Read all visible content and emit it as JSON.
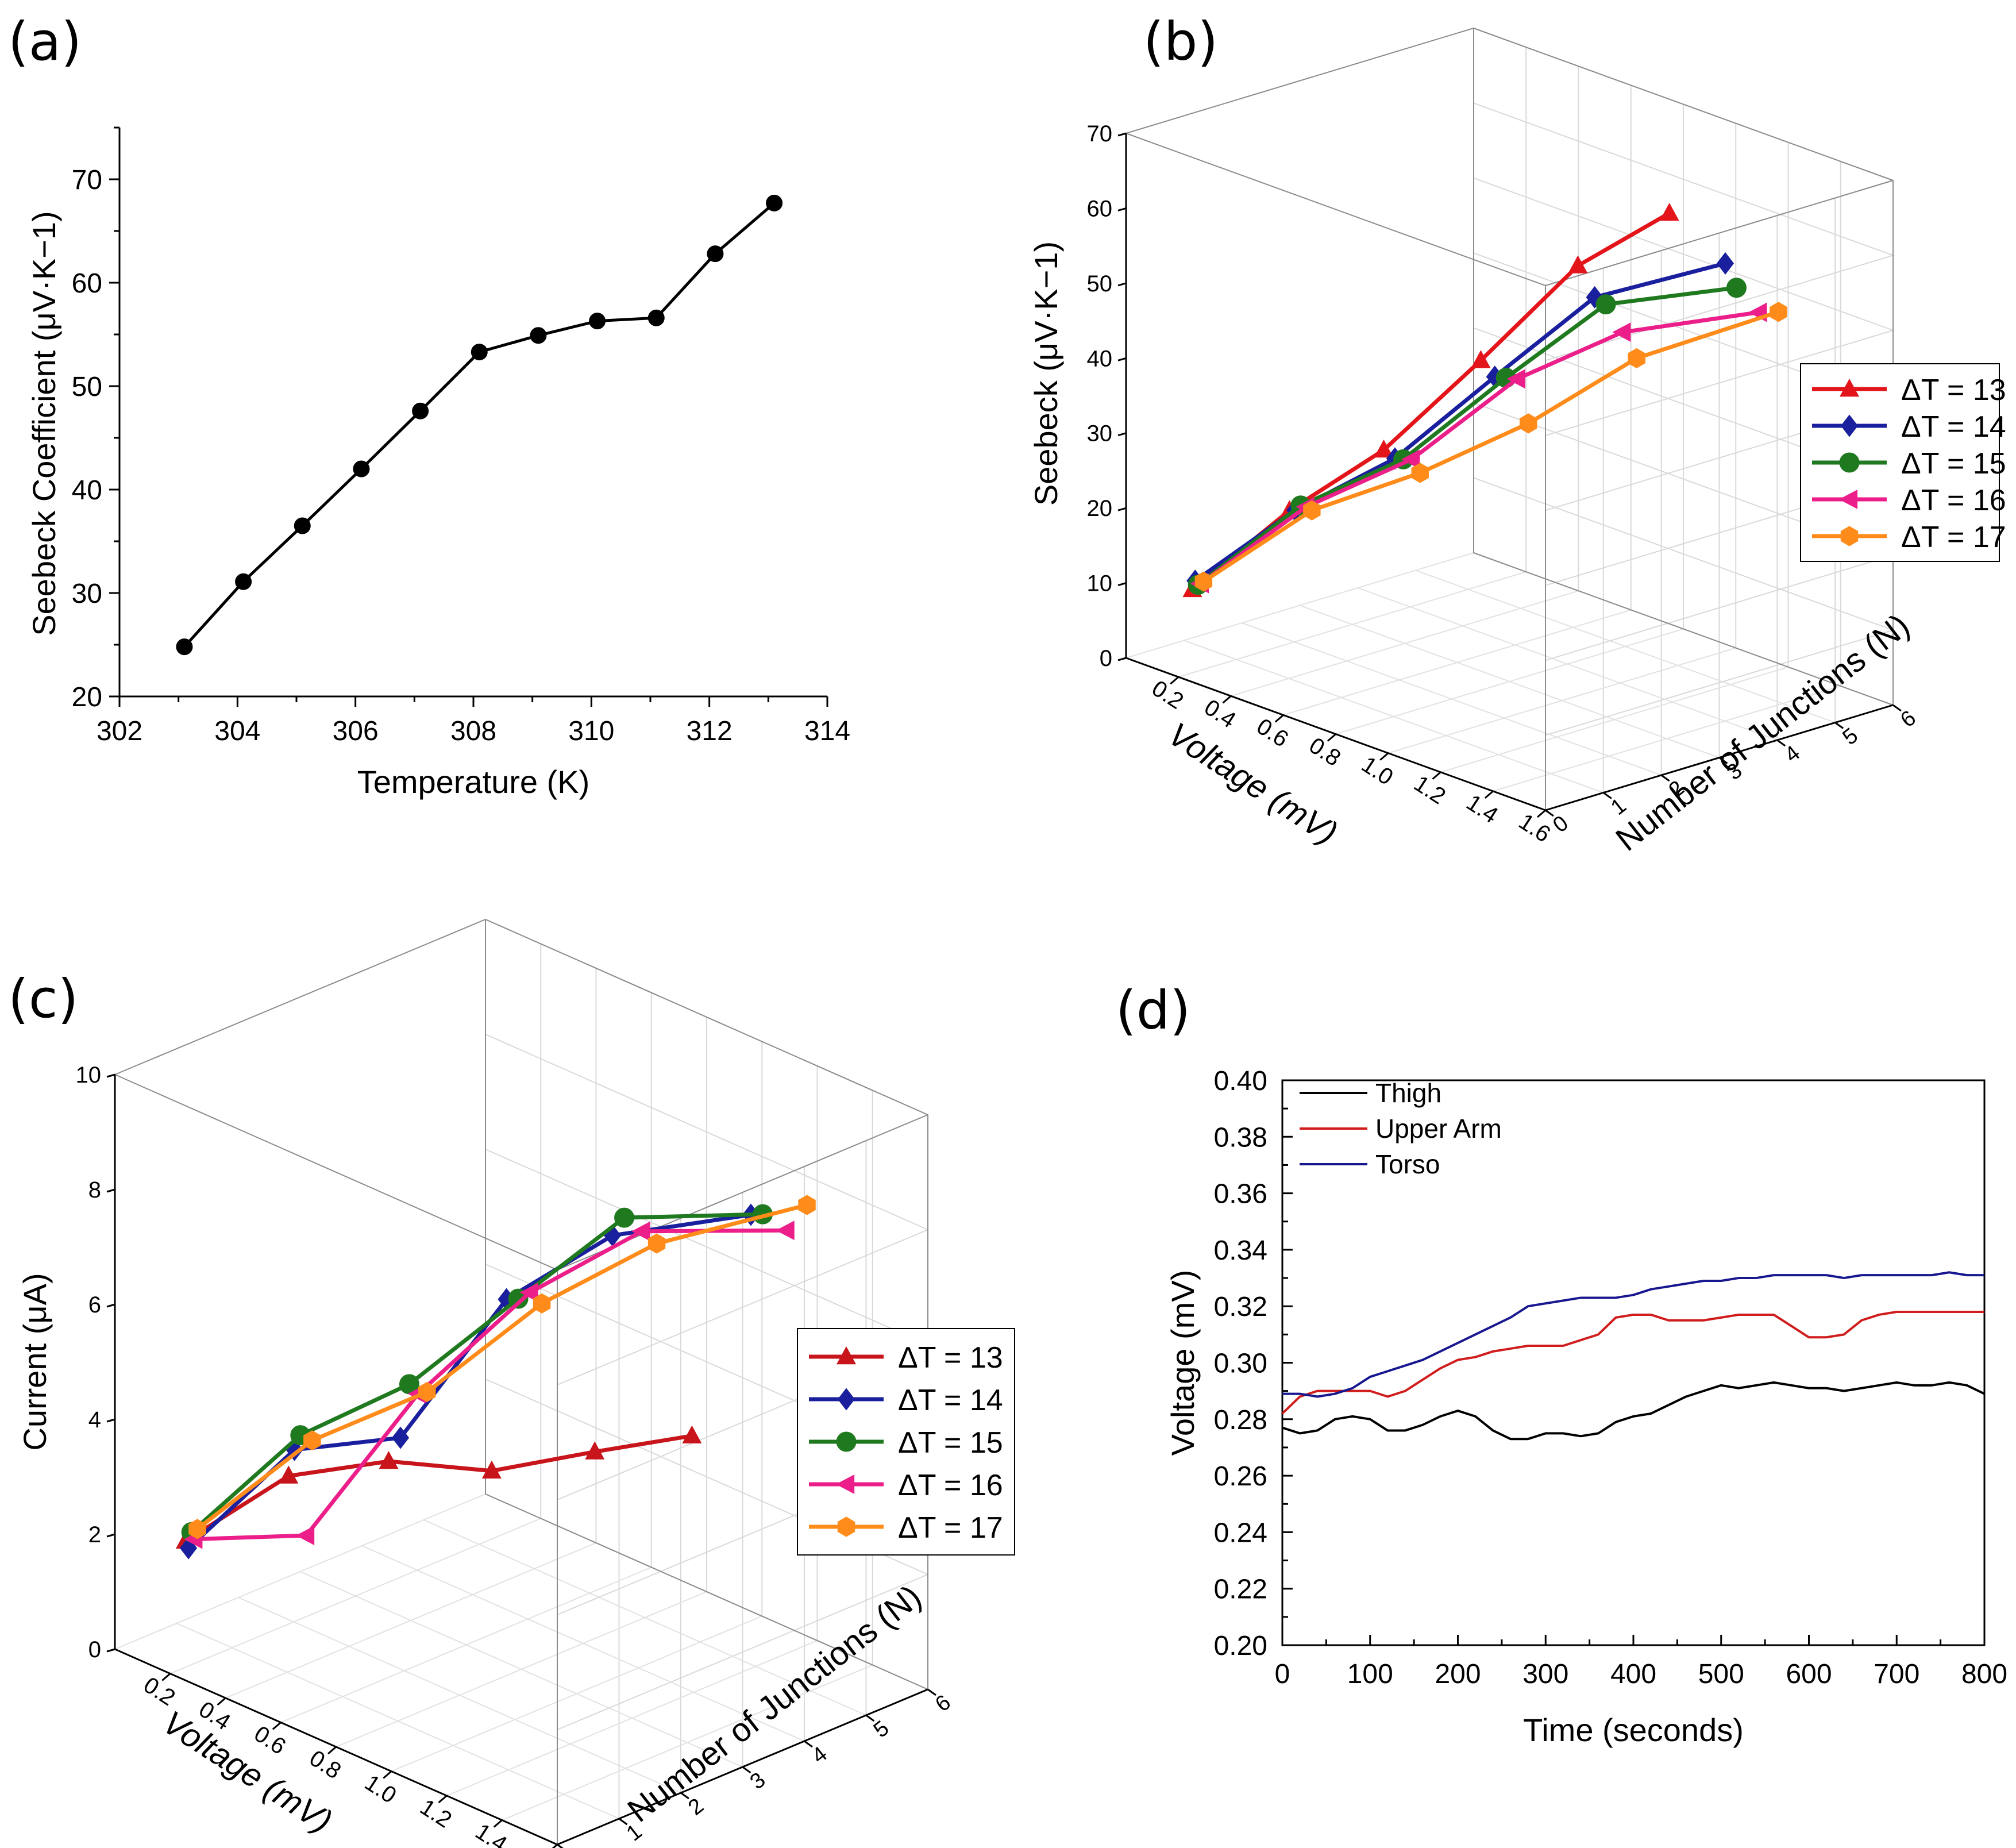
{
  "chart_data": [
    {
      "id": "a",
      "panel_label": "(a)",
      "type": "line",
      "xlabel": "Temperature (K)",
      "ylabel": "Seebeck Coefficient (μV·K−1)",
      "xlim": [
        302,
        314
      ],
      "ylim": [
        20,
        75
      ],
      "xticks": [
        302,
        304,
        306,
        308,
        310,
        312,
        314
      ],
      "yticks": [
        20,
        30,
        40,
        50,
        60,
        70
      ],
      "series": [
        {
          "name": "Seebeck",
          "color": "#000000",
          "marker": "circle",
          "x": [
            303.1,
            304.1,
            305.1,
            306.1,
            307.1,
            308.1,
            309.1,
            310.1,
            311.1,
            312.1,
            313.1
          ],
          "y": [
            24.8,
            31.1,
            36.5,
            42.0,
            47.6,
            53.3,
            54.9,
            56.3,
            56.6,
            62.8,
            67.7
          ]
        }
      ]
    },
    {
      "id": "b",
      "panel_label": "(b)",
      "type": "line3d",
      "xlabel": "Voltage (mV)",
      "ylabel": "Number of Junctions (N)",
      "zlabel": "Seebeck (μV·K−1)",
      "x_ticks": [
        "0.2",
        "0.4",
        "0.6",
        "0.8",
        "1.0",
        "1.2",
        "1.4",
        "1.6"
      ],
      "y_ticks": [
        "0",
        "1",
        "2",
        "3",
        "4",
        "5",
        "6"
      ],
      "z_ticks": [
        "0",
        "10",
        "20",
        "30",
        "40",
        "50",
        "60",
        "70"
      ],
      "zlim": [
        0,
        70
      ],
      "legend": {
        "placement": "right",
        "entries": [
          "ΔT = 13",
          "ΔT = 14",
          "ΔT = 15",
          "ΔT = 16",
          "ΔT = 17"
        ]
      },
      "series": [
        {
          "name": "ΔT = 13",
          "color": "#e3151a",
          "marker": "triangle",
          "voltage": [
            0.13,
            0.27,
            0.4,
            0.54,
            0.68,
            0.8
          ],
          "n": [
            1,
            2,
            3,
            4,
            5,
            6
          ],
          "z": [
            7.2,
            17.3,
            24.8,
            36.3,
            48.5,
            54.8
          ]
        },
        {
          "name": "ΔT = 14",
          "color": "#1a1f9e",
          "marker": "diamond",
          "voltage": [
            0.14,
            0.29,
            0.44,
            0.59,
            0.74,
            1.0
          ],
          "n": [
            1,
            2,
            3,
            4,
            5,
            6
          ],
          "z": [
            8.5,
            17.6,
            24.2,
            34.8,
            45.1,
            50.8
          ]
        },
        {
          "name": "ΔT = 15",
          "color": "#1f7a1f",
          "marker": "circle",
          "voltage": [
            0.15,
            0.31,
            0.47,
            0.63,
            0.78,
            1.04
          ],
          "n": [
            1,
            2,
            3,
            4,
            5,
            6
          ],
          "z": [
            8.1,
            18.5,
            24.5,
            35.2,
            44.7,
            48.1
          ]
        },
        {
          "name": "ΔT = 16",
          "color": "#ec1f8a",
          "marker": "triangle-left",
          "voltage": [
            0.16,
            0.33,
            0.5,
            0.67,
            0.84,
            1.12
          ],
          "n": [
            1,
            2,
            3,
            4,
            5,
            6
          ],
          "z": [
            8.4,
            18.6,
            24.9,
            35.6,
            41.8,
            45.9
          ]
        },
        {
          "name": "ΔT = 17",
          "color": "#ff8c1a",
          "marker": "hexagon",
          "voltage": [
            0.17,
            0.35,
            0.53,
            0.71,
            0.89,
            1.19
          ],
          "n": [
            1,
            2,
            3,
            4,
            5,
            6
          ],
          "z": [
            8.8,
            18.4,
            23.5,
            30.2,
            39.0,
            46.9
          ]
        }
      ]
    },
    {
      "id": "c",
      "panel_label": "(c)",
      "type": "line3d",
      "xlabel": "Voltage (mV)",
      "ylabel": "Number of Junctions (N)",
      "zlabel": "Current (μA)",
      "x_ticks": [
        "0.2",
        "0.4",
        "0.6",
        "0.8",
        "1.0",
        "1.2",
        "1.4",
        "1.6"
      ],
      "y_ticks": [
        "0",
        "1",
        "2",
        "3",
        "4",
        "5",
        "6"
      ],
      "z_ticks": [
        "0",
        "2",
        "4",
        "6",
        "8",
        "10"
      ],
      "zlim": [
        0,
        10
      ],
      "legend": {
        "placement": "right",
        "entries": [
          "ΔT = 13",
          "ΔT = 14",
          "ΔT = 15",
          "ΔT = 16",
          "ΔT = 17"
        ]
      },
      "series": [
        {
          "name": "ΔT = 13",
          "color": "#c8141b",
          "marker": "triangle",
          "voltage": [
            0.13,
            0.27,
            0.4,
            0.54,
            0.68,
            0.8
          ],
          "n": [
            1,
            2,
            3,
            4,
            5,
            6
          ],
          "z": [
            1.5,
            2.5,
            2.6,
            2.3,
            2.5,
            2.6
          ]
        },
        {
          "name": "ΔT = 14",
          "color": "#1a1f9e",
          "marker": "diamond",
          "voltage": [
            0.14,
            0.29,
            0.44,
            0.59,
            0.74,
            1.0
          ],
          "n": [
            1,
            2,
            3,
            4,
            5,
            6
          ],
          "z": [
            1.4,
            3.0,
            3.1,
            5.4,
            6.4,
            6.9
          ]
        },
        {
          "name": "ΔT = 15",
          "color": "#1f7a1f",
          "marker": "circle",
          "voltage": [
            0.15,
            0.31,
            0.47,
            0.63,
            0.78,
            1.04
          ],
          "n": [
            1,
            2,
            3,
            4,
            5,
            6
          ],
          "z": [
            1.7,
            3.3,
            4.1,
            5.5,
            6.8,
            7.0
          ]
        },
        {
          "name": "ΔT = 16",
          "color": "#ec1f8a",
          "marker": "triangle-left",
          "voltage": [
            0.16,
            0.33,
            0.5,
            0.67,
            0.84,
            1.12
          ],
          "n": [
            1,
            2,
            3,
            4,
            5,
            6
          ],
          "z": [
            1.6,
            1.6,
            4.0,
            5.7,
            6.7,
            6.9
          ]
        },
        {
          "name": "ΔT = 17",
          "color": "#ff8c1a",
          "marker": "hexagon",
          "voltage": [
            0.17,
            0.35,
            0.53,
            0.71,
            0.89,
            1.19
          ],
          "n": [
            1,
            2,
            3,
            4,
            5,
            6
          ],
          "z": [
            1.8,
            3.3,
            4.1,
            5.6,
            6.6,
            7.5
          ]
        }
      ]
    },
    {
      "id": "d",
      "panel_label": "(d)",
      "type": "line",
      "xlabel": "Time (seconds)",
      "ylabel": "Voltage (mV)",
      "xlim": [
        0,
        800
      ],
      "ylim": [
        0.2,
        0.4
      ],
      "xticks": [
        0,
        100,
        200,
        300,
        400,
        500,
        600,
        700,
        800
      ],
      "yticks": [
        "0.20",
        "0.22",
        "0.24",
        "0.26",
        "0.28",
        "0.30",
        "0.32",
        "0.34",
        "0.36",
        "0.38",
        "0.40"
      ],
      "legend": {
        "placement": "top-left",
        "entries": [
          "Thigh",
          "Upper Arm",
          "Torso"
        ]
      },
      "series": [
        {
          "name": "Thigh",
          "color": "#000000",
          "x": [
            0,
            20,
            40,
            60,
            80,
            100,
            120,
            140,
            160,
            180,
            200,
            220,
            240,
            260,
            280,
            300,
            320,
            340,
            360,
            380,
            400,
            420,
            440,
            460,
            480,
            500,
            520,
            540,
            560,
            580,
            600,
            620,
            640,
            660,
            680,
            700,
            720,
            740,
            760,
            780,
            800
          ],
          "y": [
            0.277,
            0.275,
            0.276,
            0.28,
            0.281,
            0.28,
            0.276,
            0.276,
            0.278,
            0.281,
            0.283,
            0.281,
            0.276,
            0.273,
            0.273,
            0.275,
            0.275,
            0.274,
            0.275,
            0.279,
            0.281,
            0.282,
            0.285,
            0.288,
            0.29,
            0.292,
            0.291,
            0.292,
            0.293,
            0.292,
            0.291,
            0.291,
            0.29,
            0.291,
            0.292,
            0.293,
            0.292,
            0.292,
            0.293,
            0.292,
            0.289
          ]
        },
        {
          "name": "Upper Arm",
          "color": "#d01c1c",
          "x": [
            0,
            20,
            40,
            60,
            80,
            100,
            120,
            140,
            160,
            180,
            200,
            220,
            240,
            260,
            280,
            300,
            320,
            340,
            360,
            380,
            400,
            420,
            440,
            460,
            480,
            500,
            520,
            540,
            560,
            580,
            600,
            620,
            640,
            660,
            680,
            700,
            720,
            740,
            760,
            780,
            800
          ],
          "y": [
            0.282,
            0.288,
            0.29,
            0.29,
            0.29,
            0.29,
            0.288,
            0.29,
            0.294,
            0.298,
            0.301,
            0.302,
            0.304,
            0.305,
            0.306,
            0.306,
            0.306,
            0.308,
            0.31,
            0.316,
            0.317,
            0.317,
            0.315,
            0.315,
            0.315,
            0.316,
            0.317,
            0.317,
            0.317,
            0.313,
            0.309,
            0.309,
            0.31,
            0.315,
            0.317,
            0.318,
            0.318,
            0.318,
            0.318,
            0.318,
            0.318
          ]
        },
        {
          "name": "Torso",
          "color": "#17178f",
          "x": [
            0,
            20,
            40,
            60,
            80,
            100,
            120,
            140,
            160,
            180,
            200,
            220,
            240,
            260,
            280,
            300,
            320,
            340,
            360,
            380,
            400,
            420,
            440,
            460,
            480,
            500,
            520,
            540,
            560,
            580,
            600,
            620,
            640,
            660,
            680,
            700,
            720,
            740,
            760,
            780,
            800
          ],
          "y": [
            0.289,
            0.289,
            0.288,
            0.289,
            0.291,
            0.295,
            0.297,
            0.299,
            0.301,
            0.304,
            0.307,
            0.31,
            0.313,
            0.316,
            0.32,
            0.321,
            0.322,
            0.323,
            0.323,
            0.323,
            0.324,
            0.326,
            0.327,
            0.328,
            0.329,
            0.329,
            0.33,
            0.33,
            0.331,
            0.331,
            0.331,
            0.331,
            0.33,
            0.331,
            0.331,
            0.331,
            0.331,
            0.331,
            0.332,
            0.331,
            0.331
          ]
        }
      ]
    }
  ]
}
